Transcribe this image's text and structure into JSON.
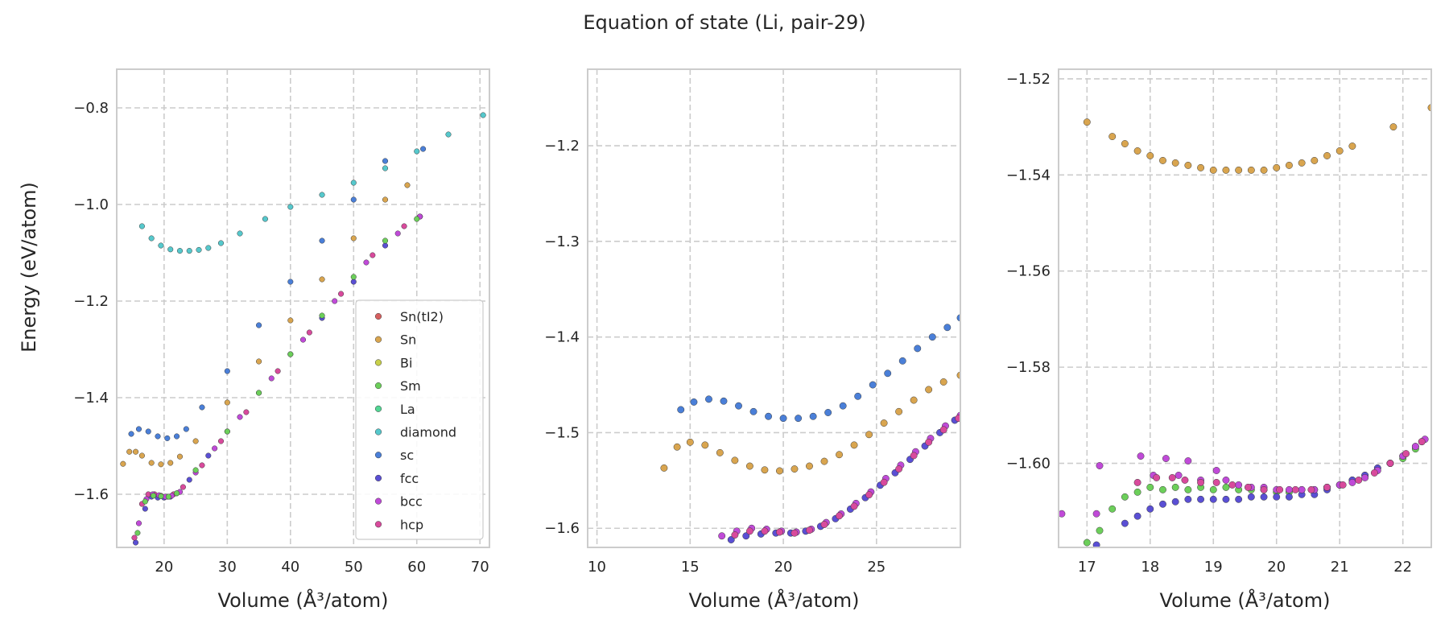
{
  "figure_title": "Equation of state (Li, pair-29)",
  "ylabel": "Energy (eV/atom)",
  "xlabel": "Volume (Å³/atom)",
  "chart_data": [
    {
      "type": "scatter",
      "xlim": [
        12.5,
        71.5
      ],
      "ylim": [
        -1.71,
        -0.72
      ],
      "xticks": [
        20,
        30,
        40,
        50,
        60,
        70
      ],
      "yticks": [
        -1.6,
        -1.4,
        -1.2,
        -1.0,
        -0.8
      ],
      "xticklabels": [
        "20",
        "30",
        "40",
        "50",
        "60",
        "70"
      ],
      "yticklabels": [
        "−1.6",
        "−1.4",
        "−1.2",
        "−1.0",
        "−0.8"
      ],
      "legend": {
        "location": "lower right",
        "entries": [
          "Sn(tI2)",
          "Sn",
          "Bi",
          "Sm",
          "La",
          "diamond",
          "sc",
          "fcc",
          "bcc",
          "hcp"
        ]
      },
      "grid": true,
      "series": [
        {
          "name": "diamond",
          "x": [
            16.5,
            18,
            19.5,
            21,
            22.5,
            24,
            25.5,
            27,
            29,
            32,
            36,
            40,
            45,
            50,
            55,
            60,
            65,
            70.5
          ],
          "y": [
            -1.045,
            -1.07,
            -1.085,
            -1.093,
            -1.096,
            -1.096,
            -1.094,
            -1.09,
            -1.08,
            -1.06,
            -1.03,
            -1.005,
            -0.98,
            -0.955,
            -0.925,
            -0.89,
            -0.855,
            -0.815
          ]
        },
        {
          "name": "sc",
          "x": [
            14.8,
            16,
            17.5,
            19,
            20.5,
            22,
            23.5,
            26,
            30,
            35,
            40,
            45,
            50,
            55,
            61
          ],
          "y": [
            -1.475,
            -1.465,
            -1.47,
            -1.48,
            -1.484,
            -1.48,
            -1.465,
            -1.42,
            -1.345,
            -1.25,
            -1.16,
            -1.075,
            -0.99,
            -0.91,
            -0.885
          ]
        },
        {
          "name": "Sn",
          "x": [
            13.5,
            14.5,
            15.5,
            16.5,
            18,
            19.5,
            21,
            22.5,
            25,
            30,
            35,
            40,
            45,
            50,
            55,
            58.5
          ],
          "y": [
            -1.537,
            -1.512,
            -1.512,
            -1.52,
            -1.535,
            -1.538,
            -1.535,
            -1.522,
            -1.49,
            -1.41,
            -1.325,
            -1.24,
            -1.155,
            -1.07,
            -0.99,
            -0.96
          ]
        },
        {
          "name": "fcc",
          "x": [
            15.5,
            17,
            18,
            19,
            20,
            21,
            22,
            24,
            27,
            30,
            35,
            40,
            45,
            50,
            55,
            60.5
          ],
          "y": [
            -1.7,
            -1.63,
            -1.605,
            -1.607,
            -1.607,
            -1.605,
            -1.598,
            -1.57,
            -1.52,
            -1.47,
            -1.39,
            -1.31,
            -1.235,
            -1.16,
            -1.085,
            -1.025
          ]
        },
        {
          "name": "hcp",
          "x": [
            15.3,
            16.5,
            17.5,
            18.5,
            19.5,
            20.5,
            21.5,
            23,
            26,
            29,
            33,
            38,
            43,
            48,
            53,
            58,
            60.5
          ],
          "y": [
            -1.69,
            -1.62,
            -1.6,
            -1.6,
            -1.603,
            -1.605,
            -1.6,
            -1.585,
            -1.54,
            -1.49,
            -1.43,
            -1.345,
            -1.265,
            -1.185,
            -1.105,
            -1.045,
            -1.025
          ]
        },
        {
          "name": "bcc",
          "x": [
            16,
            17.2,
            18.2,
            19.2,
            20.2,
            21.2,
            22.5,
            25,
            28,
            32,
            37,
            42,
            47,
            52,
            57,
            60.5
          ],
          "y": [
            -1.66,
            -1.61,
            -1.6,
            -1.602,
            -1.605,
            -1.603,
            -1.595,
            -1.555,
            -1.505,
            -1.44,
            -1.36,
            -1.28,
            -1.2,
            -1.12,
            -1.06,
            -1.025
          ]
        },
        {
          "name": "Sm",
          "x": [
            15.8,
            17,
            18.3,
            19.5,
            20.7,
            22,
            25,
            30,
            35,
            40,
            45,
            50,
            55,
            60
          ],
          "y": [
            -1.68,
            -1.615,
            -1.603,
            -1.604,
            -1.605,
            -1.598,
            -1.55,
            -1.47,
            -1.39,
            -1.31,
            -1.23,
            -1.15,
            -1.075,
            -1.03
          ]
        }
      ]
    },
    {
      "type": "scatter",
      "xlim": [
        9.5,
        29.5
      ],
      "ylim": [
        -1.62,
        -1.12
      ],
      "xticks": [
        10,
        15,
        20,
        25
      ],
      "yticks": [
        -1.6,
        -1.5,
        -1.4,
        -1.3,
        -1.2
      ],
      "xticklabels": [
        "10",
        "15",
        "20",
        "25"
      ],
      "yticklabels": [
        "−1.6",
        "−1.5",
        "−1.4",
        "−1.3",
        "−1.2"
      ],
      "grid": true,
      "series": [
        {
          "name": "sc",
          "x": [
            14.5,
            15.2,
            16,
            16.8,
            17.6,
            18.4,
            19.2,
            20,
            20.8,
            21.6,
            22.4,
            23.2,
            24,
            24.8,
            25.6,
            26.4,
            27.2,
            28,
            28.8,
            29.5
          ],
          "y": [
            -1.476,
            -1.468,
            -1.465,
            -1.467,
            -1.472,
            -1.478,
            -1.483,
            -1.485,
            -1.485,
            -1.483,
            -1.479,
            -1.472,
            -1.462,
            -1.45,
            -1.438,
            -1.425,
            -1.412,
            -1.4,
            -1.39,
            -1.38
          ]
        },
        {
          "name": "Sn",
          "x": [
            13.6,
            14.3,
            15,
            15.8,
            16.6,
            17.4,
            18.2,
            19,
            19.8,
            20.6,
            21.4,
            22.2,
            23,
            23.8,
            24.6,
            25.4,
            26.2,
            27,
            27.8,
            28.6,
            29.5
          ],
          "y": [
            -1.537,
            -1.515,
            -1.51,
            -1.513,
            -1.521,
            -1.529,
            -1.535,
            -1.539,
            -1.54,
            -1.538,
            -1.535,
            -1.53,
            -1.523,
            -1.513,
            -1.502,
            -1.49,
            -1.478,
            -1.466,
            -1.455,
            -1.447,
            -1.44
          ]
        },
        {
          "name": "fcc",
          "x": [
            17.2,
            18,
            18.8,
            19.6,
            20.4,
            21.2,
            22,
            22.8,
            23.6,
            24.4,
            25.2,
            26,
            26.8,
            27.6,
            28.4,
            29.2
          ],
          "y": [
            -1.612,
            -1.608,
            -1.606,
            -1.605,
            -1.605,
            -1.603,
            -1.598,
            -1.59,
            -1.58,
            -1.568,
            -1.555,
            -1.542,
            -1.528,
            -1.514,
            -1.5,
            -1.487
          ]
        },
        {
          "name": "bcc",
          "x": [
            16.7,
            17.5,
            18.3,
            19.1,
            19.9,
            20.7,
            21.5,
            22.3,
            23.1,
            23.9,
            24.7,
            25.5,
            26.3,
            27.1,
            27.9,
            28.7,
            29.5
          ],
          "y": [
            -1.608,
            -1.603,
            -1.6,
            -1.601,
            -1.603,
            -1.604,
            -1.601,
            -1.594,
            -1.585,
            -1.574,
            -1.562,
            -1.548,
            -1.534,
            -1.52,
            -1.506,
            -1.493,
            -1.482
          ]
        },
        {
          "name": "hcp",
          "x": [
            17.4,
            18.2,
            19,
            19.8,
            20.6,
            21.4,
            22.2,
            23,
            23.8,
            24.6,
            25.4,
            26.2,
            27,
            27.8,
            28.6,
            29.4
          ],
          "y": [
            -1.607,
            -1.603,
            -1.603,
            -1.604,
            -1.605,
            -1.602,
            -1.596,
            -1.587,
            -1.577,
            -1.565,
            -1.552,
            -1.538,
            -1.524,
            -1.51,
            -1.497,
            -1.485
          ]
        }
      ]
    },
    {
      "type": "scatter",
      "xlim": [
        16.55,
        22.45
      ],
      "ylim": [
        -1.6175,
        -1.518
      ],
      "xticks": [
        17,
        18,
        19,
        20,
        21,
        22
      ],
      "yticks": [
        -1.6,
        -1.58,
        -1.56,
        -1.54,
        -1.52
      ],
      "xticklabels": [
        "17",
        "18",
        "19",
        "20",
        "21",
        "22"
      ],
      "yticklabels": [
        "−1.60",
        "−1.58",
        "−1.56",
        "−1.54",
        "−1.52"
      ],
      "grid": true,
      "series": [
        {
          "name": "Sn",
          "x": [
            17,
            17.4,
            17.6,
            17.8,
            18,
            18.2,
            18.4,
            18.6,
            18.8,
            19,
            19.2,
            19.4,
            19.6,
            19.8,
            20,
            20.2,
            20.4,
            20.6,
            20.8,
            21,
            21.2,
            21.85,
            22.45
          ],
          "y": [
            -1.529,
            -1.532,
            -1.5335,
            -1.535,
            -1.536,
            -1.537,
            -1.5375,
            -1.538,
            -1.5385,
            -1.539,
            -1.539,
            -1.539,
            -1.539,
            -1.539,
            -1.5385,
            -1.538,
            -1.5375,
            -1.537,
            -1.536,
            -1.535,
            -1.534,
            -1.53,
            -1.526
          ]
        },
        {
          "name": "Sm",
          "x": [
            17,
            17.2,
            17.4,
            17.6,
            17.8,
            18,
            18.2,
            18.4,
            18.6,
            18.8,
            19,
            19.2,
            19.4,
            19.6,
            19.8,
            20,
            20.2,
            20.4,
            20.6,
            20.8,
            21,
            21.2,
            21.4,
            21.6,
            21.8,
            22,
            22.2
          ],
          "y": [
            -1.6165,
            -1.614,
            -1.6095,
            -1.607,
            -1.606,
            -1.605,
            -1.6055,
            -1.605,
            -1.6055,
            -1.605,
            -1.6055,
            -1.605,
            -1.6055,
            -1.6055,
            -1.6055,
            -1.606,
            -1.606,
            -1.6055,
            -1.6055,
            -1.605,
            -1.6045,
            -1.6035,
            -1.6025,
            -1.601,
            -1.6,
            -1.599,
            -1.597
          ]
        },
        {
          "name": "fcc",
          "x": [
            17.15,
            17.6,
            17.8,
            18,
            18.2,
            18.4,
            18.6,
            18.8,
            19,
            19.2,
            19.4,
            19.6,
            19.8,
            20,
            20.2,
            20.4,
            20.6,
            20.8,
            21,
            21.2,
            21.4,
            21.6,
            21.8,
            22,
            22.2,
            22.3
          ],
          "y": [
            -1.617,
            -1.6125,
            -1.611,
            -1.6095,
            -1.6085,
            -1.608,
            -1.6075,
            -1.6075,
            -1.6075,
            -1.6075,
            -1.6075,
            -1.607,
            -1.607,
            -1.607,
            -1.607,
            -1.6065,
            -1.6065,
            -1.6055,
            -1.6045,
            -1.6035,
            -1.6025,
            -1.601,
            -1.6,
            -1.5985,
            -1.5965,
            -1.5955
          ]
        },
        {
          "name": "bcc",
          "x": [
            16.6,
            17.15,
            17.2,
            17.85,
            18.05,
            18.25,
            18.45,
            18.6,
            18.8,
            19.05,
            19.2,
            19.4,
            19.6,
            19.8,
            20,
            20.2,
            20.4,
            20.6,
            20.8,
            21,
            21.2,
            21.4,
            21.6,
            21.8,
            22,
            22.2,
            22.35
          ],
          "y": [
            -1.6105,
            -1.6105,
            -1.6005,
            -1.5985,
            -1.6025,
            -1.599,
            -1.6025,
            -1.5995,
            -1.6035,
            -1.6015,
            -1.6035,
            -1.6045,
            -1.605,
            -1.605,
            -1.6055,
            -1.6055,
            -1.6055,
            -1.6055,
            -1.605,
            -1.6045,
            -1.604,
            -1.603,
            -1.6015,
            -1.6,
            -1.5985,
            -1.5965,
            -1.595
          ]
        },
        {
          "name": "hcp",
          "x": [
            17.8,
            18.1,
            18.35,
            18.55,
            18.8,
            19.05,
            19.3,
            19.55,
            19.8,
            20.05,
            20.3,
            20.55,
            20.8,
            21.05,
            21.3,
            21.55,
            21.8,
            22.05,
            22.3
          ],
          "y": [
            -1.604,
            -1.603,
            -1.603,
            -1.6035,
            -1.604,
            -1.604,
            -1.6045,
            -1.605,
            -1.6055,
            -1.6055,
            -1.6055,
            -1.6055,
            -1.605,
            -1.6045,
            -1.6035,
            -1.602,
            -1.6,
            -1.598,
            -1.5955
          ]
        }
      ]
    }
  ],
  "series_colors": {
    "Sn(tI2)": "#d65f5f",
    "Sn": "#d9a54f",
    "Bi": "#c8d04a",
    "Sm": "#6ccf5a",
    "La": "#52d694",
    "diamond": "#56c8cc",
    "sc": "#4a7fd8",
    "fcc": "#5a4fd4",
    "bcc": "#c04ad8",
    "hcp": "#d84a9c"
  }
}
